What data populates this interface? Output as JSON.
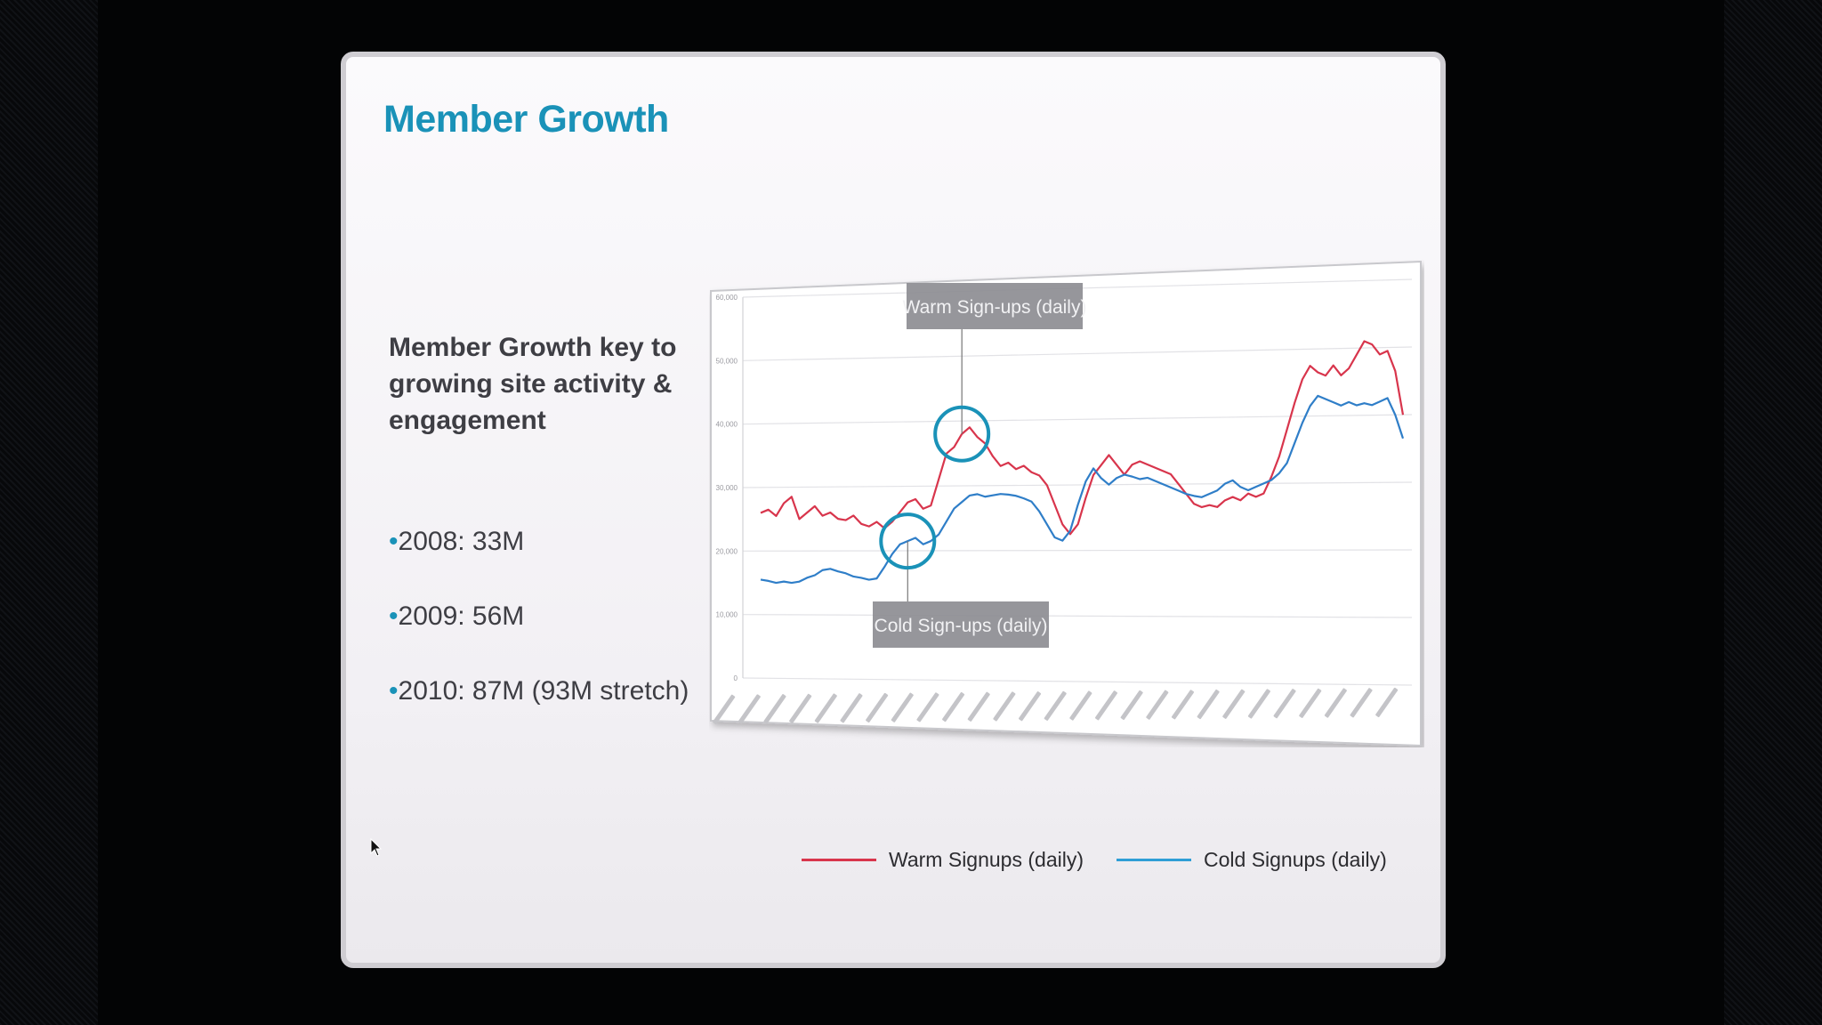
{
  "slide": {
    "title": "Member Growth",
    "lead": "Member Growth key to growing site activity & engagement",
    "bullets": [
      "2008: 33M",
      "2009: 56M",
      "2010: 87M (93M stretch)"
    ],
    "bullet_marker": "•"
  },
  "chart_data": {
    "type": "line",
    "title": "",
    "xlabel": "",
    "ylabel": "",
    "x_ticks": [
      "",
      "",
      "",
      "",
      "",
      "",
      "",
      "",
      "",
      "",
      "",
      "",
      "",
      "",
      "",
      "",
      "",
      "",
      "",
      "",
      "",
      "",
      "",
      "",
      "",
      "",
      ""
    ],
    "y_ticks": [
      "0",
      "10,000",
      "20,000",
      "30,000",
      "40,000",
      "50,000",
      "60,000"
    ],
    "ylim": [
      0,
      60000
    ],
    "grid": true,
    "legend_position": "bottom-right",
    "series": [
      {
        "name": "Warm Signups (daily)",
        "color": "#d8354c",
        "values": [
          26000,
          26500,
          25500,
          27500,
          28500,
          25000,
          26000,
          27000,
          25500,
          26000,
          25000,
          24800,
          25500,
          24200,
          23800,
          24500,
          23500,
          24500,
          26000,
          27500,
          28000,
          26500,
          27000,
          31000,
          35000,
          36000,
          38000,
          39000,
          37500,
          36500,
          34500,
          33000,
          33500,
          32500,
          33000,
          32000,
          31500,
          30000,
          27000,
          24000,
          22500,
          24000,
          28000,
          31500,
          33000,
          34500,
          33000,
          31500,
          33000,
          33500,
          33000,
          32500,
          32000,
          31500,
          30000,
          28500,
          27000,
          26500,
          26800,
          26500,
          27500,
          28000,
          27500,
          28500,
          28000,
          28500,
          31000,
          34000,
          38000,
          42000,
          45500,
          47500,
          46500,
          46000,
          47500,
          46000,
          47000,
          49000,
          51000,
          50500,
          49000,
          49500,
          46500,
          40000
        ]
      },
      {
        "name": "Cold Signups (daily)",
        "color": "#2f7ec8",
        "values": [
          15500,
          15300,
          15000,
          15200,
          15000,
          15200,
          15800,
          16200,
          17000,
          17200,
          16800,
          16500,
          16000,
          15800,
          15500,
          15700,
          17500,
          19500,
          21000,
          21500,
          22000,
          21000,
          21500,
          22500,
          24500,
          26500,
          27500,
          28500,
          28700,
          28300,
          28500,
          28700,
          28600,
          28400,
          28000,
          27500,
          26000,
          24000,
          22000,
          21500,
          23000,
          27000,
          30500,
          32500,
          31000,
          30000,
          31000,
          31500,
          31200,
          30800,
          31000,
          30500,
          30000,
          29500,
          29000,
          28500,
          28200,
          28000,
          28500,
          29000,
          30000,
          30500,
          29500,
          29000,
          29500,
          30000,
          30500,
          31500,
          33000,
          36000,
          39000,
          41500,
          43000,
          42500,
          42000,
          41500,
          42000,
          41500,
          41800,
          41500,
          42000,
          42500,
          40000,
          36500
        ]
      }
    ],
    "callouts": [
      {
        "text": "Warm Sign-ups (daily)",
        "series": 0
      },
      {
        "text": "Cold Sign-ups (daily)",
        "series": 1
      }
    ],
    "highlight_color": "#1a92b8"
  }
}
